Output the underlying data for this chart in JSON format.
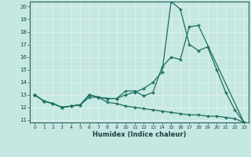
{
  "xlabel": "Humidex (Indice chaleur)",
  "xlim": [
    -0.5,
    23.5
  ],
  "ylim": [
    10.8,
    20.4
  ],
  "yticks": [
    11,
    12,
    13,
    14,
    15,
    16,
    17,
    18,
    19,
    20
  ],
  "xticks": [
    0,
    1,
    2,
    3,
    4,
    5,
    6,
    7,
    8,
    9,
    10,
    11,
    12,
    13,
    14,
    15,
    16,
    17,
    18,
    19,
    20,
    21,
    22,
    23
  ],
  "bg_color": "#c5e8e2",
  "grid_color": "#dff0ed",
  "line_color": "#1a6e5e",
  "line1_x": [
    0,
    1,
    2,
    3,
    4,
    5,
    6,
    7,
    8,
    9,
    10,
    11,
    12,
    13,
    14,
    15,
    16,
    17,
    18,
    23
  ],
  "line1_y": [
    13.0,
    12.5,
    12.3,
    12.0,
    12.1,
    12.2,
    13.0,
    12.8,
    12.7,
    12.7,
    13.3,
    13.3,
    12.9,
    13.2,
    15.2,
    16.0,
    15.8,
    18.4,
    18.5,
    10.8
  ],
  "line2_x": [
    0,
    1,
    2,
    3,
    4,
    5,
    6,
    7,
    8,
    9,
    10,
    11,
    12,
    13,
    14,
    15,
    16,
    17,
    18,
    19,
    20,
    21,
    22,
    23
  ],
  "line2_y": [
    13.0,
    12.5,
    12.3,
    12.0,
    12.1,
    12.2,
    13.0,
    12.8,
    12.7,
    12.7,
    13.0,
    13.2,
    13.5,
    14.0,
    14.8,
    20.4,
    19.8,
    17.0,
    16.5,
    16.8,
    15.0,
    13.2,
    11.8,
    10.8
  ],
  "line3_x": [
    0,
    1,
    2,
    3,
    4,
    5,
    6,
    7,
    8,
    9,
    10,
    11,
    12,
    13,
    14,
    15,
    16,
    17,
    18,
    19,
    20,
    21,
    22,
    23
  ],
  "line3_y": [
    13.0,
    12.5,
    12.3,
    12.0,
    12.1,
    12.2,
    12.8,
    12.8,
    12.4,
    12.3,
    12.1,
    12.0,
    11.9,
    11.8,
    11.7,
    11.6,
    11.5,
    11.4,
    11.4,
    11.3,
    11.3,
    11.2,
    11.1,
    10.8
  ]
}
